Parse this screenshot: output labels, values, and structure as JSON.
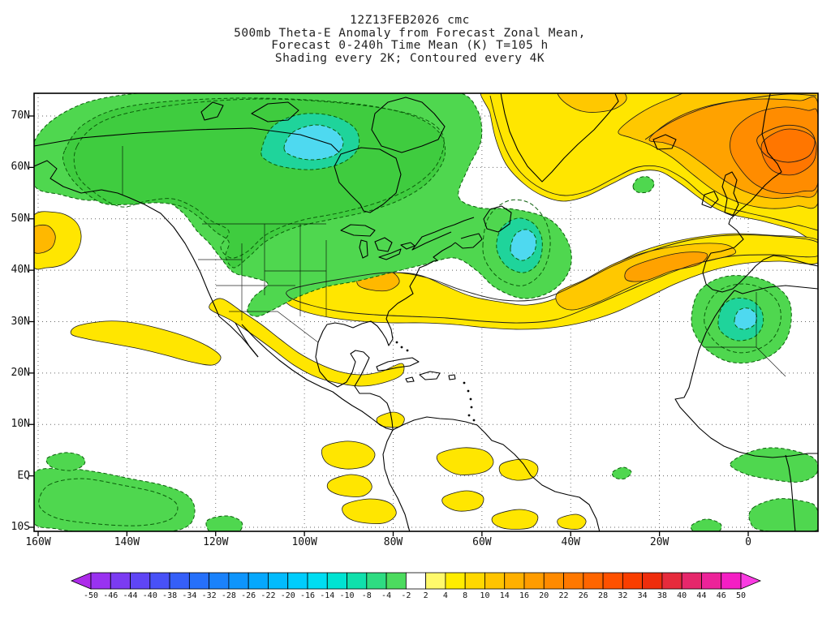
{
  "title": {
    "line1": "12Z13FEB2026 cmc",
    "line2": "500mb Theta-E Anomaly from Forecast Zonal Mean,",
    "line3": "Forecast 0-240h Time Mean (K) T=105 h",
    "line4": "Shading every 2K; Contoured every 4K"
  },
  "axes": {
    "lat_labels": [
      "70N",
      "60N",
      "50N",
      "40N",
      "30N",
      "20N",
      "10N",
      "EQ",
      "10S"
    ],
    "lon_labels": [
      "160W",
      "140W",
      "120W",
      "100W",
      "80W",
      "60W",
      "40W",
      "20W",
      "0"
    ]
  },
  "colorbar": {
    "tick_labels": [
      "-50",
      "-46",
      "-44",
      "-40",
      "-38",
      "-34",
      "-32",
      "-28",
      "-26",
      "-22",
      "-20",
      "-16",
      "-14",
      "-10",
      "-8",
      "-4",
      "-2",
      "2",
      "4",
      "8",
      "10",
      "14",
      "16",
      "20",
      "22",
      "26",
      "28",
      "32",
      "34",
      "38",
      "40",
      "44",
      "46",
      "50"
    ],
    "colors": [
      "#AD2BEA",
      "#9932F0",
      "#7B3BF2",
      "#5F45F5",
      "#4851F7",
      "#355FF8",
      "#2670FA",
      "#1A82FB",
      "#0E95FC",
      "#06A8FD",
      "#02BBFD",
      "#00CDFD",
      "#00DDF2",
      "#00E3D2",
      "#10E0AC",
      "#2EDC82",
      "#4CDB5F",
      "#FFFFFF",
      "#FFF96B",
      "#FFEC00",
      "#FFD800",
      "#FFC400",
      "#FFB000",
      "#FF9C00",
      "#FF8A00",
      "#FF7800",
      "#FF6500",
      "#FF5100",
      "#F93E00",
      "#EF2D0C",
      "#E62B3C",
      "#E6276B",
      "#EC2399",
      "#F41FC4",
      "#FA3BE2"
    ]
  },
  "chart_data": {
    "type": "heatmap",
    "subtype": "filled_contour_weather_map",
    "model": "cmc",
    "run": "12Z13FEB2026",
    "variable": "500mb Theta-E Anomaly from Forecast Zonal Mean",
    "units": "K",
    "forecast": "0-240h Time Mean, T=105 h",
    "shading_interval_K": 2,
    "contour_interval_K": 4,
    "negative_contour_style": "dashed",
    "positive_contour_style": "solid",
    "lon_range": [
      "160W",
      "16E"
    ],
    "lat_range": [
      "10S",
      "74N"
    ],
    "grid": "dotted every 10 lat / 20 lon",
    "anomaly_features": [
      {
        "sign": "negative",
        "region": "Alaska and Canada (broad cold/low Theta-E pool)",
        "approx_center": "62N 95W",
        "approx_extreme_K": -12
      },
      {
        "sign": "negative",
        "region": "NW Atlantic south of Newfoundland",
        "approx_center": "45N 55W",
        "approx_extreme_K": -14
      },
      {
        "sign": "negative",
        "region": "Northwest Africa",
        "approx_center": "28N 5W",
        "approx_extreme_K": -10
      },
      {
        "sign": "negative",
        "region": "Equatorial central Pacific (map lower-left)",
        "approx_center": "3S 145W",
        "approx_extreme_K": -6
      },
      {
        "sign": "positive",
        "region": "North Atlantic Greenland-Iceland-UK band (strongest max)",
        "approx_center": "64N 8W",
        "approx_extreme_K": 24
      },
      {
        "sign": "positive",
        "region": "Central mid-Atlantic band toward Europe",
        "approx_center": "44N 35W",
        "approx_extreme_K": 14
      },
      {
        "sign": "positive",
        "region": "Southeast United States coast",
        "approx_center": "36N 81W",
        "approx_extreme_K": 10
      },
      {
        "sign": "positive",
        "region": "NE Pacific at western map edge",
        "approx_center": "47N 160W",
        "approx_extreme_K": 12
      },
      {
        "sign": "positive",
        "region": "Mexico / subtropical East Pacific arc",
        "approx_center": "22N 108W",
        "approx_extreme_K": 6
      },
      {
        "sign": "positive",
        "region": "Tropical South America and Caribbean patches",
        "approx_center": "5N 70W",
        "approx_extreme_K": 4
      }
    ],
    "colors": {
      "background": "#FFFFFF",
      "green_shade": "#4FD74F",
      "teal_core": "#1FD49B",
      "cyan_core": "#4ED9F0",
      "yellow_shade": "#FFE600",
      "gold_shade": "#FFC800",
      "orange_core": "#FFA200",
      "deep_orange_core": "#FF7600"
    }
  }
}
